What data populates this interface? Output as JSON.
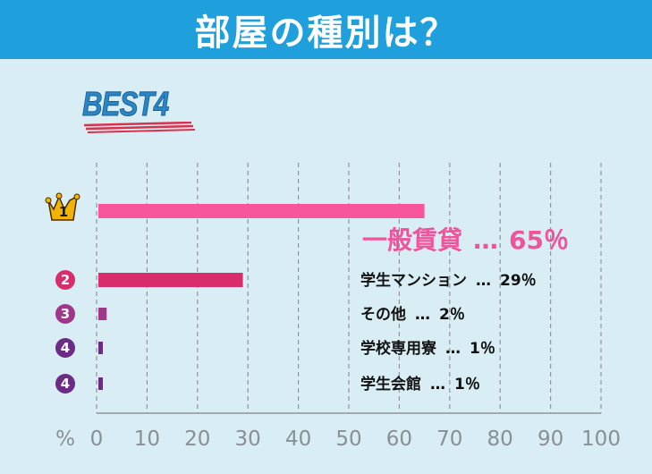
{
  "header": {
    "title": "部屋の種別は？"
  },
  "badge": {
    "label": "BEST4"
  },
  "colors": {
    "header_bg": "#1f9fdb",
    "rank1": "#f7569b",
    "rank2": "#d92c6a",
    "rank3": "#a0378a",
    "rank4": "#6b2c86"
  },
  "chart_data": {
    "type": "bar",
    "orientation": "horizontal",
    "axis_unit_label": "%",
    "xlim": [
      0,
      100
    ],
    "xticks": [
      "0",
      "10",
      "20",
      "30",
      "40",
      "50",
      "60",
      "70",
      "80",
      "90",
      "100"
    ],
    "grid": true,
    "bars": [
      {
        "rank": "1",
        "rank_icon": "crown-icon",
        "value": 65,
        "label": "一般賃貸",
        "sep": "…",
        "pct": "65％",
        "color": "#f7569b"
      },
      {
        "rank": "2",
        "rank_icon": "circle-2-icon",
        "value": 29,
        "label": "学生マンション",
        "sep": "…",
        "pct": "29％",
        "color": "#d92c6a"
      },
      {
        "rank": "3",
        "rank_icon": "circle-3-icon",
        "value": 2,
        "label": "その他",
        "sep": "…",
        "pct": "2％",
        "color": "#a0378a"
      },
      {
        "rank": "4",
        "rank_icon": "circle-4-icon",
        "value": 1,
        "label": "学校専用寮",
        "sep": "…",
        "pct": "1％",
        "color": "#6b2c86"
      },
      {
        "rank": "4",
        "rank_icon": "circle-4-icon",
        "value": 1,
        "label": "学生会館",
        "sep": "…",
        "pct": "1％",
        "color": "#6b2c86"
      }
    ]
  }
}
